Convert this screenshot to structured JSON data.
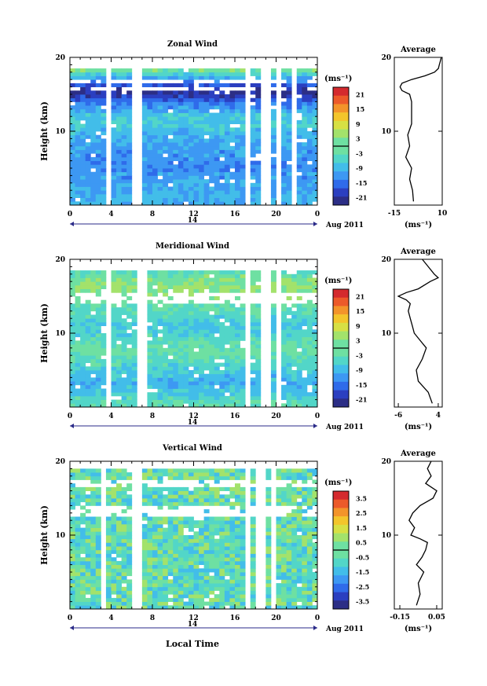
{
  "figure": {
    "xlabel": "Local Time",
    "date_day": "14",
    "date_label": "Aug 2011"
  },
  "chart_data": [
    {
      "type": "heatmap",
      "title": "Zonal Wind",
      "ylabel": "Height (km)",
      "unit_label": "(ms⁻¹)",
      "x_ticks": [
        "0",
        "4",
        "8",
        "12",
        "16",
        "20",
        "0"
      ],
      "y_ticks": [
        "20",
        "10"
      ],
      "ylim": [
        0,
        20
      ],
      "xlim_hours": [
        0,
        24
      ],
      "colorbar_ticks": [
        "21",
        "15",
        "9",
        "3",
        "-3",
        "-9",
        "-15",
        "-21"
      ],
      "colorbar_range": [
        -24,
        24
      ],
      "profile": {
        "title": "Average",
        "xlabel": "(ms⁻¹)",
        "x_ticks": [
          "-15",
          "10"
        ],
        "y_ticks": [
          "20",
          "10"
        ],
        "xlim": [
          -15,
          10
        ],
        "heights": [
          0.5,
          2,
          3.5,
          5,
          6.5,
          8,
          9.5,
          11,
          12.5,
          14,
          15,
          15.5,
          16,
          16.5,
          17,
          17.5,
          18,
          18.5,
          19,
          19.5,
          20
        ],
        "values": [
          -5,
          -5.5,
          -7,
          -6,
          -9,
          -7,
          -8,
          -6,
          -6,
          -6,
          -7,
          -11,
          -12,
          -11,
          -6,
          1,
          6,
          8,
          8.5,
          9,
          9.5
        ]
      },
      "field": {
        "cols": 48,
        "rows": 40,
        "color_rows": [
          [
            0,
            -8
          ],
          [
            2,
            -8.5
          ],
          [
            4,
            -9.5
          ],
          [
            6,
            -10.5
          ],
          [
            8,
            -11
          ],
          [
            10,
            -12
          ],
          [
            12,
            -11.5
          ],
          [
            14,
            -11
          ],
          [
            16,
            -10
          ],
          [
            18,
            -8
          ],
          [
            20,
            -7
          ],
          [
            22,
            -6
          ],
          [
            24,
            -7
          ],
          [
            26,
            -11
          ],
          [
            28,
            -16
          ],
          [
            30,
            -21
          ],
          [
            32,
            -17
          ],
          [
            34,
            -9
          ],
          [
            36,
            0
          ],
          [
            38,
            4
          ],
          [
            40,
            5
          ]
        ],
        "noise": 2.5,
        "gap_cols": [
          7,
          12,
          13,
          34,
          37,
          38,
          40,
          43
        ],
        "gap_rows": [
          31,
          33
        ],
        "top_row": 37
      }
    },
    {
      "type": "heatmap",
      "title": "Meridional Wind",
      "ylabel": "Height (km)",
      "unit_label": "(ms⁻¹)",
      "x_ticks": [
        "0",
        "4",
        "8",
        "12",
        "16",
        "20",
        "0"
      ],
      "y_ticks": [
        "20",
        "10"
      ],
      "ylim": [
        0,
        20
      ],
      "xlim_hours": [
        0,
        24
      ],
      "colorbar_ticks": [
        "21",
        "15",
        "9",
        "3",
        "-3",
        "-9",
        "-15",
        "-21"
      ],
      "colorbar_range": [
        -24,
        24
      ],
      "profile": {
        "title": "Average",
        "xlabel": "(ms⁻¹)",
        "x_ticks": [
          "-6",
          "4"
        ],
        "y_ticks": [
          "20",
          "10"
        ],
        "xlim": [
          -7,
          5
        ],
        "heights": [
          0.5,
          2,
          3.5,
          5,
          6.5,
          8,
          9,
          10,
          11,
          12,
          13,
          14,
          14.5,
          15,
          15.5,
          16,
          17,
          17.5,
          18,
          19,
          20
        ],
        "values": [
          2.5,
          1.5,
          -1,
          -1.5,
          0,
          1,
          -0.5,
          -2,
          -2.5,
          -3,
          -3.5,
          -3,
          -4,
          -6,
          -4,
          -1,
          2,
          4,
          3,
          1.5,
          0
        ]
      },
      "field": {
        "cols": 48,
        "rows": 40,
        "color_rows": [
          [
            0,
            -2
          ],
          [
            2,
            -4
          ],
          [
            4,
            -7
          ],
          [
            6,
            -8
          ],
          [
            8,
            -7
          ],
          [
            10,
            -5
          ],
          [
            12,
            -3
          ],
          [
            14,
            -1
          ],
          [
            16,
            -1
          ],
          [
            18,
            -3
          ],
          [
            20,
            -5
          ],
          [
            22,
            -6
          ],
          [
            24,
            -4
          ],
          [
            26,
            -2
          ],
          [
            28,
            0
          ],
          [
            30,
            2
          ],
          [
            32,
            3
          ],
          [
            34,
            1
          ],
          [
            36,
            -2
          ],
          [
            38,
            0
          ],
          [
            40,
            1
          ]
        ],
        "noise": 2.5,
        "gap_cols": [
          7,
          13,
          14,
          34,
          37,
          38,
          40
        ],
        "gap_rows": [
          28,
          29,
          30
        ],
        "top_row": 37
      }
    },
    {
      "type": "heatmap",
      "title": "Vertical Wind",
      "ylabel": "Height (km)",
      "unit_label": "(ms⁻¹)",
      "x_ticks": [
        "0",
        "4",
        "8",
        "12",
        "16",
        "20",
        "0"
      ],
      "y_ticks": [
        "20",
        "10"
      ],
      "ylim": [
        0,
        20
      ],
      "xlim_hours": [
        0,
        24
      ],
      "colorbar_ticks": [
        "3.5",
        "2.5",
        "1.5",
        "0.5",
        "-0.5",
        "-1.5",
        "-2.5",
        "-3.5"
      ],
      "colorbar_range": [
        -4,
        4
      ],
      "profile": {
        "title": "Average",
        "xlabel": "(ms⁻¹)",
        "x_ticks": [
          "-0.15",
          "0.05"
        ],
        "y_ticks": [
          "20",
          "10"
        ],
        "xlim": [
          -0.18,
          0.08
        ],
        "heights": [
          0.5,
          2,
          3.5,
          5,
          6,
          7,
          8,
          9,
          9.5,
          10,
          11,
          12,
          13,
          14,
          15,
          16,
          17,
          18,
          19,
          20
        ],
        "values": [
          -0.06,
          -0.04,
          -0.05,
          -0.02,
          -0.06,
          -0.03,
          -0.01,
          0.0,
          -0.04,
          -0.09,
          -0.07,
          -0.1,
          -0.08,
          -0.04,
          0.03,
          0.05,
          -0.01,
          0.02,
          0.0,
          0.02
        ]
      },
      "field": {
        "cols": 48,
        "rows": 40,
        "color_rows": [
          [
            0,
            -0.3
          ],
          [
            40,
            -0.3
          ]
        ],
        "noise": 1.0,
        "gap_cols": [
          6,
          12,
          13,
          34,
          36,
          37,
          39
        ],
        "gap_rows": [
          25,
          26,
          27,
          33,
          34
        ],
        "top_row": 38
      }
    }
  ]
}
